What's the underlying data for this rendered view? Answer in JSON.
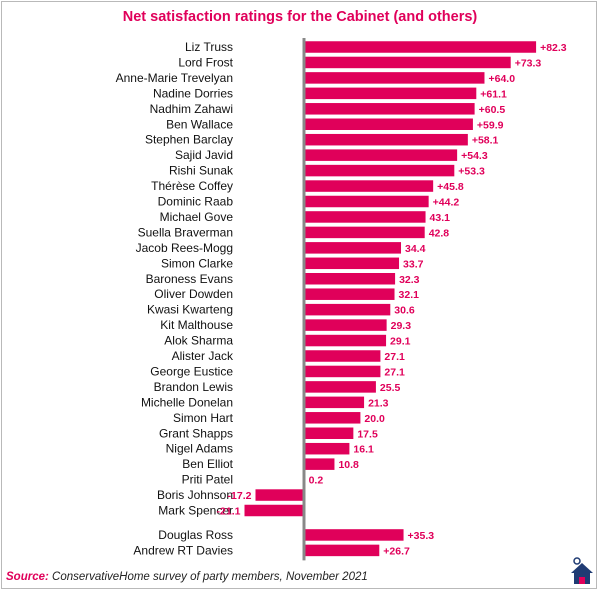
{
  "chart_data": {
    "type": "bar",
    "orientation": "horizontal",
    "title": "Net satisfaction ratings for the Cabinet (and others)",
    "categories": [
      "Liz Truss",
      "Lord Frost",
      "Anne-Marie Trevelyan",
      "Nadine Dorries",
      "Nadhim Zahawi",
      "Ben Wallace",
      "Stephen Barclay",
      "Sajid Javid",
      "Rishi Sunak",
      "Thérèse Coffey",
      "Dominic Raab",
      "Michael Gove",
      "Suella Braverman",
      "Jacob Rees-Mogg",
      "Simon Clarke",
      "Baroness Evans",
      "Oliver Dowden",
      "Kwasi Kwarteng",
      "Kit Malthouse",
      "Alok Sharma",
      "Alister Jack",
      "George Eustice",
      "Brandon Lewis",
      "Michelle Donelan",
      "Simon Hart",
      "Grant Shapps",
      "Nigel Adams",
      "Ben Elliot",
      "Priti Patel",
      "Boris Johnson",
      "Mark Spencer",
      "Douglas Ross",
      "Andrew RT Davies"
    ],
    "values": [
      82.3,
      73.3,
      64.0,
      61.1,
      60.5,
      59.9,
      58.1,
      54.3,
      53.3,
      45.8,
      44.2,
      43.1,
      42.8,
      34.4,
      33.7,
      32.3,
      32.1,
      30.6,
      29.3,
      29.1,
      27.1,
      27.1,
      25.5,
      21.3,
      20.0,
      17.5,
      16.1,
      10.8,
      0.2,
      -17.2,
      -21.1,
      35.3,
      26.7
    ],
    "data_labels": [
      "+82.3",
      "+73.3",
      "+64.0",
      "+61.1",
      "+60.5",
      "+59.9",
      "+58.1",
      "+54.3",
      "+53.3",
      "+45.8",
      "+44.2",
      "43.1",
      "42.8",
      "34.4",
      "33.7",
      "32.3",
      "32.1",
      "30.6",
      "29.3",
      "29.1",
      "27.1",
      "27.1",
      "25.5",
      "21.3",
      "20.0",
      "17.5",
      "16.1",
      "10.8",
      "0.2",
      "-17.2",
      "-21.1",
      "+35.3",
      "+26.7"
    ],
    "gap_before_index": 31,
    "xlim": [
      -40,
      100
    ],
    "bar_color": "#e0005a",
    "label_color": "#e0005a",
    "axis_color": "#888888",
    "grid": false,
    "legend": "none"
  },
  "source": {
    "label": "Source:",
    "text": "ConservativeHome survey of party members, November 2021"
  },
  "colors": {
    "accent": "#e0005a",
    "logo": "#1f3b73"
  },
  "icons": {
    "logo": "house-logo-icon"
  }
}
